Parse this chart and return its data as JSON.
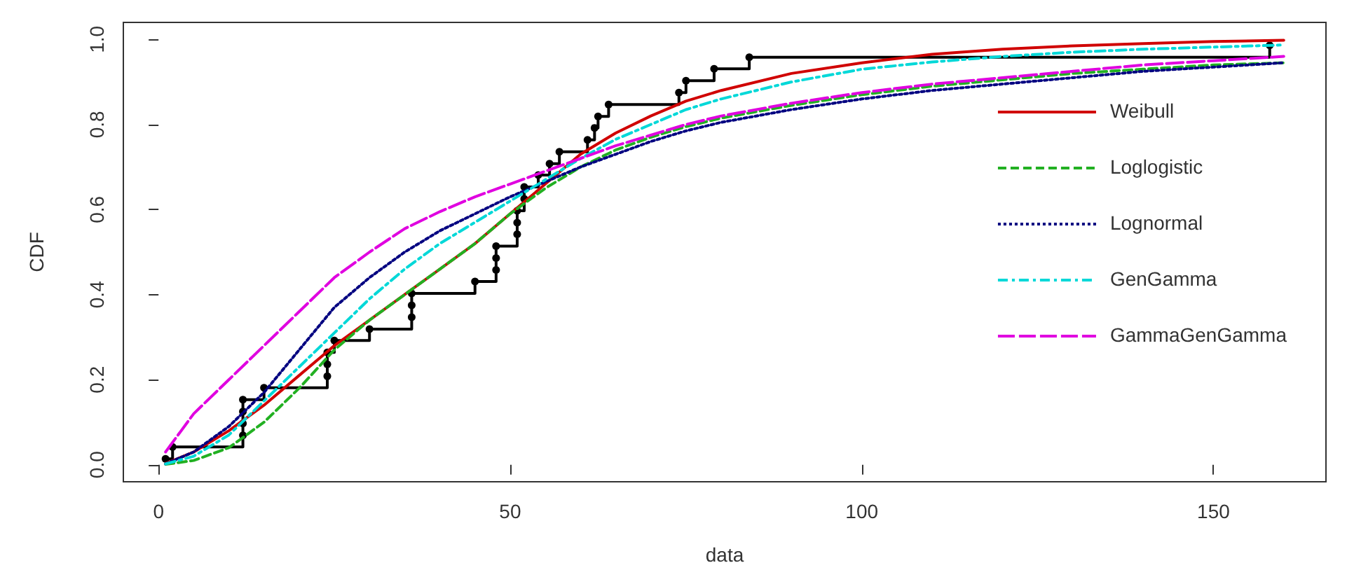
{
  "chart_data": {
    "type": "line",
    "xlabel": "data",
    "ylabel": "CDF",
    "xlim": [
      -5,
      166
    ],
    "xticks": [
      0,
      50,
      100,
      150
    ],
    "ylim": [
      -0.04,
      1.04
    ],
    "yticks": [
      {
        "value": 0,
        "label": "0.0"
      },
      0.2,
      0.4,
      0.6,
      0.8,
      {
        "value": 1,
        "label": "1.0"
      }
    ],
    "grid": false,
    "legend": "top right",
    "marker": "none",
    "x": [
      1,
      5,
      10,
      15,
      20,
      25,
      30,
      35,
      40,
      45,
      50,
      55,
      60,
      65,
      70,
      75,
      80,
      90,
      100,
      110,
      120,
      130,
      140,
      150,
      160
    ],
    "series": [
      {
        "type": "step",
        "color": "#000000",
        "marker": "circle",
        "x": [
          1,
          2,
          12,
          12,
          12,
          12,
          15,
          24,
          24,
          24,
          25,
          30,
          36,
          36,
          36,
          45,
          48,
          48,
          48,
          51,
          51,
          51,
          52,
          52,
          54,
          55.6,
          57,
          61,
          62,
          62.5,
          64,
          74,
          75,
          79,
          84,
          158
        ],
        "values": [
          0.014,
          0.042,
          0.069,
          0.097,
          0.125,
          0.153,
          0.181,
          0.208,
          0.236,
          0.264,
          0.292,
          0.319,
          0.347,
          0.375,
          0.403,
          0.431,
          0.458,
          0.486,
          0.514,
          0.542,
          0.569,
          0.597,
          0.625,
          0.653,
          0.681,
          0.708,
          0.736,
          0.764,
          0.792,
          0.819,
          0.847,
          0.875,
          0.903,
          0.931,
          0.958,
          0.986
        ]
      },
      {
        "name": "Weibull",
        "color": "#d00000",
        "line_style": "solid",
        "values": [
          0.003,
          0.03,
          0.08,
          0.14,
          0.21,
          0.28,
          0.34,
          0.4,
          0.46,
          0.52,
          0.59,
          0.66,
          0.73,
          0.78,
          0.82,
          0.855,
          0.88,
          0.92,
          0.945,
          0.965,
          0.977,
          0.985,
          0.99,
          0.995,
          0.998
        ]
      },
      {
        "name": "Loglogistic",
        "color": "#22b022",
        "line_style": "dashed",
        "values": [
          0.001,
          0.01,
          0.04,
          0.1,
          0.18,
          0.27,
          0.34,
          0.4,
          0.46,
          0.52,
          0.59,
          0.65,
          0.7,
          0.74,
          0.77,
          0.795,
          0.815,
          0.845,
          0.87,
          0.89,
          0.905,
          0.92,
          0.93,
          0.94,
          0.945
        ]
      },
      {
        "name": "Lognormal",
        "color": "#000080",
        "line_style": "dotted",
        "values": [
          0.002,
          0.03,
          0.09,
          0.17,
          0.27,
          0.37,
          0.44,
          0.5,
          0.55,
          0.59,
          0.63,
          0.665,
          0.7,
          0.73,
          0.76,
          0.785,
          0.805,
          0.835,
          0.86,
          0.88,
          0.895,
          0.91,
          0.925,
          0.935,
          0.945
        ]
      },
      {
        "name": "GenGamma",
        "color": "#00d8d8",
        "line_style": "dashdot",
        "values": [
          0.002,
          0.02,
          0.07,
          0.15,
          0.23,
          0.31,
          0.39,
          0.46,
          0.52,
          0.57,
          0.62,
          0.67,
          0.72,
          0.765,
          0.8,
          0.835,
          0.86,
          0.9,
          0.93,
          0.947,
          0.96,
          0.97,
          0.977,
          0.982,
          0.987
        ]
      },
      {
        "name": "GammaGenGamma",
        "color": "#e000e0",
        "line_style": "longdash",
        "values": [
          0.03,
          0.12,
          0.2,
          0.28,
          0.36,
          0.44,
          0.5,
          0.555,
          0.595,
          0.63,
          0.66,
          0.69,
          0.72,
          0.75,
          0.775,
          0.8,
          0.82,
          0.85,
          0.875,
          0.895,
          0.91,
          0.925,
          0.94,
          0.95,
          0.96
        ]
      }
    ]
  }
}
